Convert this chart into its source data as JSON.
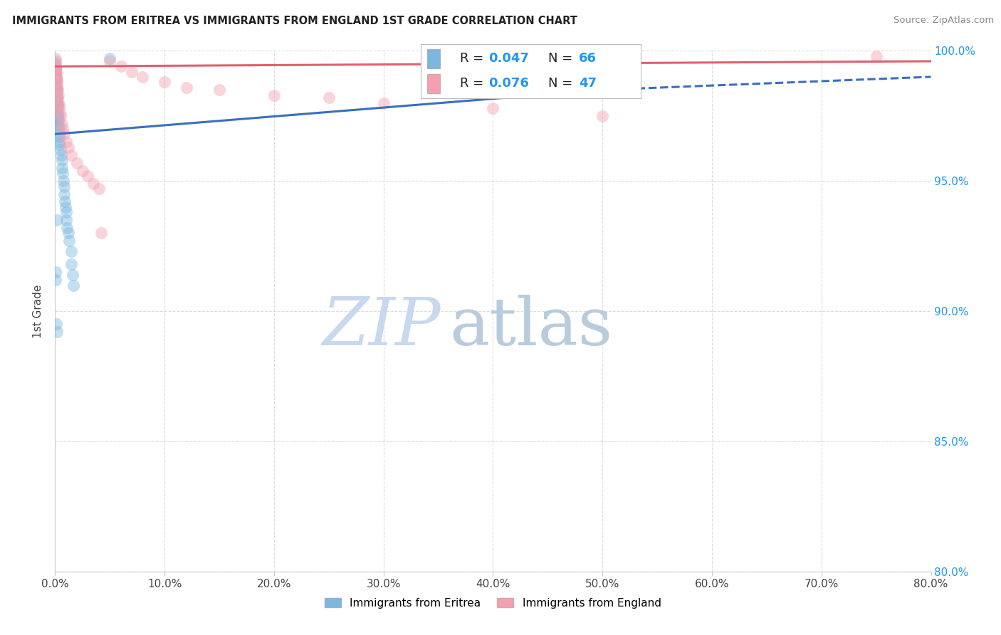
{
  "title": "IMMIGRANTS FROM ERITREA VS IMMIGRANTS FROM ENGLAND 1ST GRADE CORRELATION CHART",
  "source": "Source: ZipAtlas.com",
  "ylabel": "1st Grade",
  "xlim": [
    0.0,
    80.0
  ],
  "ylim": [
    80.0,
    100.0
  ],
  "x_ticks": [
    0.0,
    10.0,
    20.0,
    30.0,
    40.0,
    50.0,
    60.0,
    70.0,
    80.0
  ],
  "y_ticks": [
    80.0,
    85.0,
    90.0,
    95.0,
    100.0
  ],
  "x_tick_labels": [
    "0.0%",
    "10.0%",
    "20.0%",
    "30.0%",
    "40.0%",
    "50.0%",
    "60.0%",
    "70.0%",
    "80.0%"
  ],
  "y_tick_labels": [
    "80.0%",
    "85.0%",
    "90.0%",
    "95.0%",
    "100.0%"
  ],
  "series1_color": "#7ab8e0",
  "series2_color": "#f4a0b0",
  "trend1_color": "#3a6fbe",
  "trend2_color": "#e06070",
  "series1_label": "Immigrants from Eritrea",
  "series2_label": "Immigrants from England",
  "legend_r1": "0.047",
  "legend_n1": "66",
  "legend_r2": "0.076",
  "legend_n2": "47",
  "watermark_zip_color": "#c8d8ee",
  "watermark_atlas_color": "#b8ccdd",
  "blue_text_color": "#2196F3",
  "eritrea_x": [
    0.05,
    0.05,
    0.05,
    0.07,
    0.07,
    0.08,
    0.08,
    0.1,
    0.1,
    0.1,
    0.12,
    0.12,
    0.12,
    0.13,
    0.15,
    0.15,
    0.15,
    0.17,
    0.17,
    0.2,
    0.2,
    0.2,
    0.22,
    0.22,
    0.25,
    0.25,
    0.28,
    0.3,
    0.3,
    0.35,
    0.35,
    0.4,
    0.4,
    0.45,
    0.5,
    0.55,
    0.6,
    0.65,
    0.7,
    0.75,
    0.8,
    0.85,
    0.9,
    0.95,
    1.0,
    1.0,
    1.1,
    1.2,
    1.3,
    1.5,
    1.5,
    1.6,
    1.7,
    0.0,
    0.0,
    0.0,
    0.0,
    0.03,
    0.03,
    0.03,
    0.05,
    0.05,
    0.18,
    5.0,
    0.1,
    0.2
  ],
  "eritrea_y": [
    99.6,
    99.3,
    98.9,
    99.1,
    98.7,
    98.5,
    98.1,
    99.0,
    98.6,
    98.2,
    98.8,
    98.4,
    98.0,
    97.8,
    98.5,
    98.1,
    97.7,
    98.0,
    97.6,
    98.2,
    97.8,
    97.4,
    97.9,
    97.5,
    97.6,
    97.2,
    97.3,
    97.4,
    97.0,
    97.1,
    96.7,
    96.8,
    96.4,
    96.5,
    96.2,
    96.0,
    95.8,
    95.5,
    95.3,
    95.0,
    94.8,
    94.5,
    94.2,
    94.0,
    93.8,
    93.5,
    93.2,
    93.0,
    92.7,
    92.3,
    91.8,
    91.4,
    91.0,
    99.5,
    99.2,
    98.9,
    98.6,
    99.3,
    99.0,
    98.7,
    91.5,
    91.2,
    93.5,
    99.7,
    89.5,
    89.2
  ],
  "england_x": [
    0.05,
    0.05,
    0.05,
    0.07,
    0.07,
    0.1,
    0.1,
    0.1,
    0.12,
    0.15,
    0.15,
    0.18,
    0.2,
    0.2,
    0.25,
    0.25,
    0.3,
    0.3,
    0.35,
    0.4,
    0.45,
    0.5,
    0.6,
    0.7,
    0.8,
    1.0,
    1.2,
    1.5,
    2.0,
    2.5,
    3.0,
    3.5,
    4.0,
    5.0,
    6.0,
    7.0,
    8.0,
    10.0,
    12.0,
    15.0,
    20.0,
    25.0,
    30.0,
    40.0,
    50.0,
    75.0,
    4.2
  ],
  "england_y": [
    99.7,
    99.5,
    99.2,
    99.4,
    99.1,
    99.3,
    99.0,
    98.8,
    99.1,
    98.9,
    98.6,
    98.8,
    98.6,
    98.3,
    98.5,
    98.2,
    98.3,
    98.0,
    97.9,
    97.8,
    97.6,
    97.5,
    97.2,
    97.0,
    96.8,
    96.5,
    96.3,
    96.0,
    95.7,
    95.4,
    95.2,
    94.9,
    94.7,
    99.6,
    99.4,
    99.2,
    99.0,
    98.8,
    98.6,
    98.5,
    98.3,
    98.2,
    98.0,
    97.8,
    97.5,
    99.8,
    93.0
  ],
  "trend1_x0": 0.0,
  "trend1_y0": 96.8,
  "trend1_x1": 50.0,
  "trend1_y1": 98.5,
  "trend1_dash_x0": 50.0,
  "trend1_dash_y0": 98.5,
  "trend1_dash_x1": 80.0,
  "trend1_dash_y1": 99.0,
  "trend2_x0": 0.0,
  "trend2_y0": 99.4,
  "trend2_x1": 80.0,
  "trend2_y1": 99.6
}
